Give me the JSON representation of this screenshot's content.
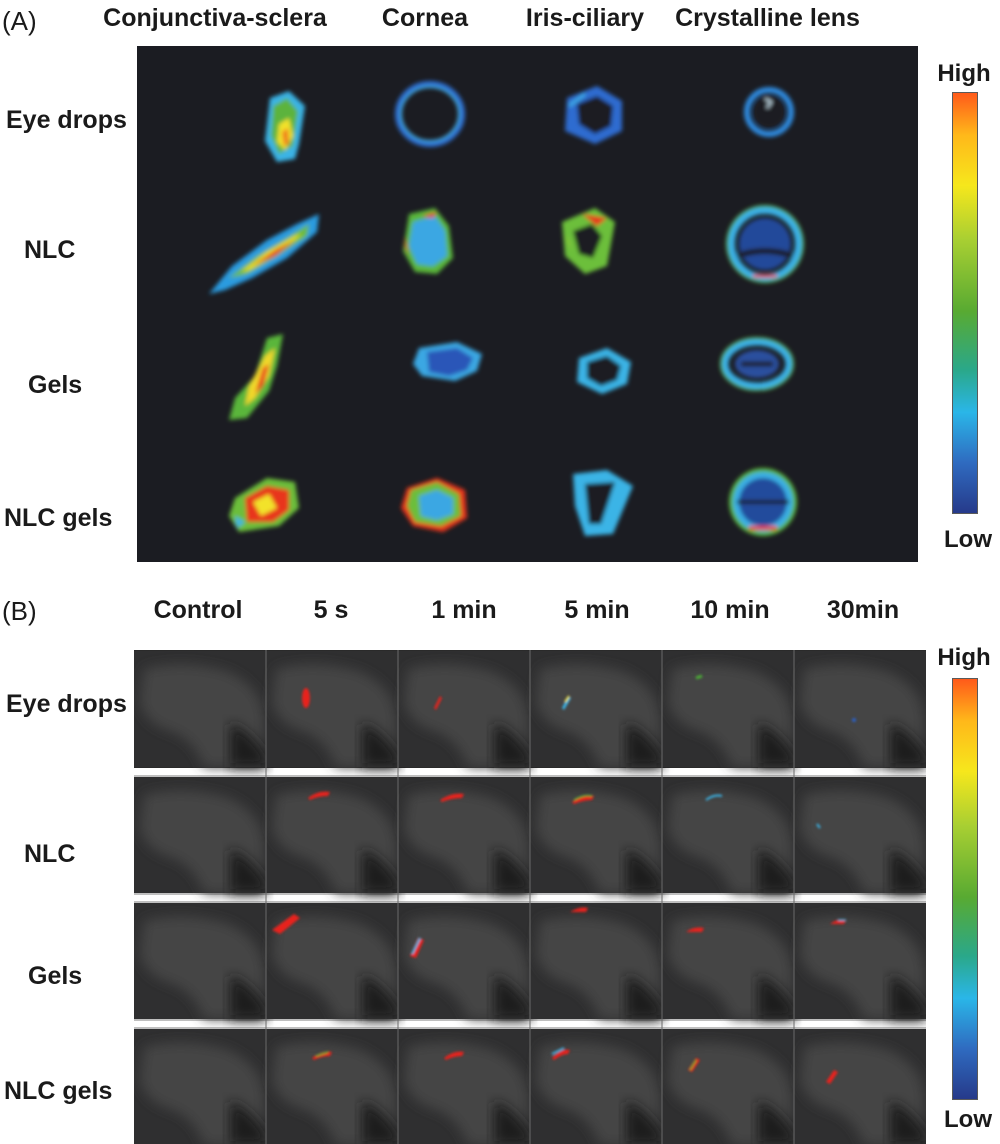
{
  "panel_a": {
    "letter": "(A)",
    "columns": [
      "Conjunctiva-sclera",
      "Cornea",
      "Iris-ciliary",
      "Crystalline lens"
    ],
    "rows": [
      "Eye drops",
      "NLC",
      "Gels",
      "NLC gels"
    ],
    "scale_high": "High",
    "scale_low": "Low"
  },
  "panel_b": {
    "letter": "(B)",
    "columns": [
      "Control",
      "5 s",
      "1 min",
      "5 min",
      "10 min",
      "30min"
    ],
    "rows": [
      "Eye drops",
      "NLC",
      "Gels",
      "NLC gels"
    ],
    "scale_high": "High",
    "scale_low": "Low"
  },
  "colors": {
    "panel_bg": "#1b1c22",
    "tile_bg": "#3a3a3a",
    "signal_high": "#e8231d",
    "signal_mid": "#4caf35",
    "signal_low": "#2b5fc4"
  }
}
